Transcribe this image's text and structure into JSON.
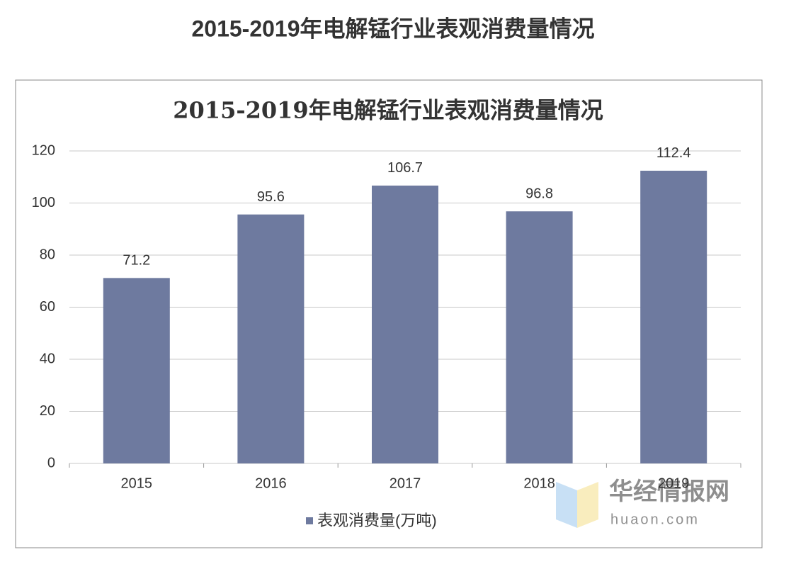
{
  "page_title": "2015-2019年电解锰行业表观消费量情况",
  "watermark": {
    "name": "华经情报网",
    "site": "huaon.com"
  },
  "chart_data": {
    "type": "bar",
    "title": "2015-2019年电解锰行业表观消费量情况",
    "categories": [
      "2015",
      "2016",
      "2017",
      "2018",
      "2019"
    ],
    "series": [
      {
        "name": "表观消费量(万吨)",
        "color": "#6e7a9f",
        "values": [
          71.2,
          95.6,
          106.7,
          96.8,
          112.4
        ]
      }
    ],
    "ylim": [
      0,
      120
    ],
    "yticks": [
      0,
      20,
      40,
      60,
      80,
      100,
      120
    ],
    "grid": true,
    "legend": "bottom"
  }
}
